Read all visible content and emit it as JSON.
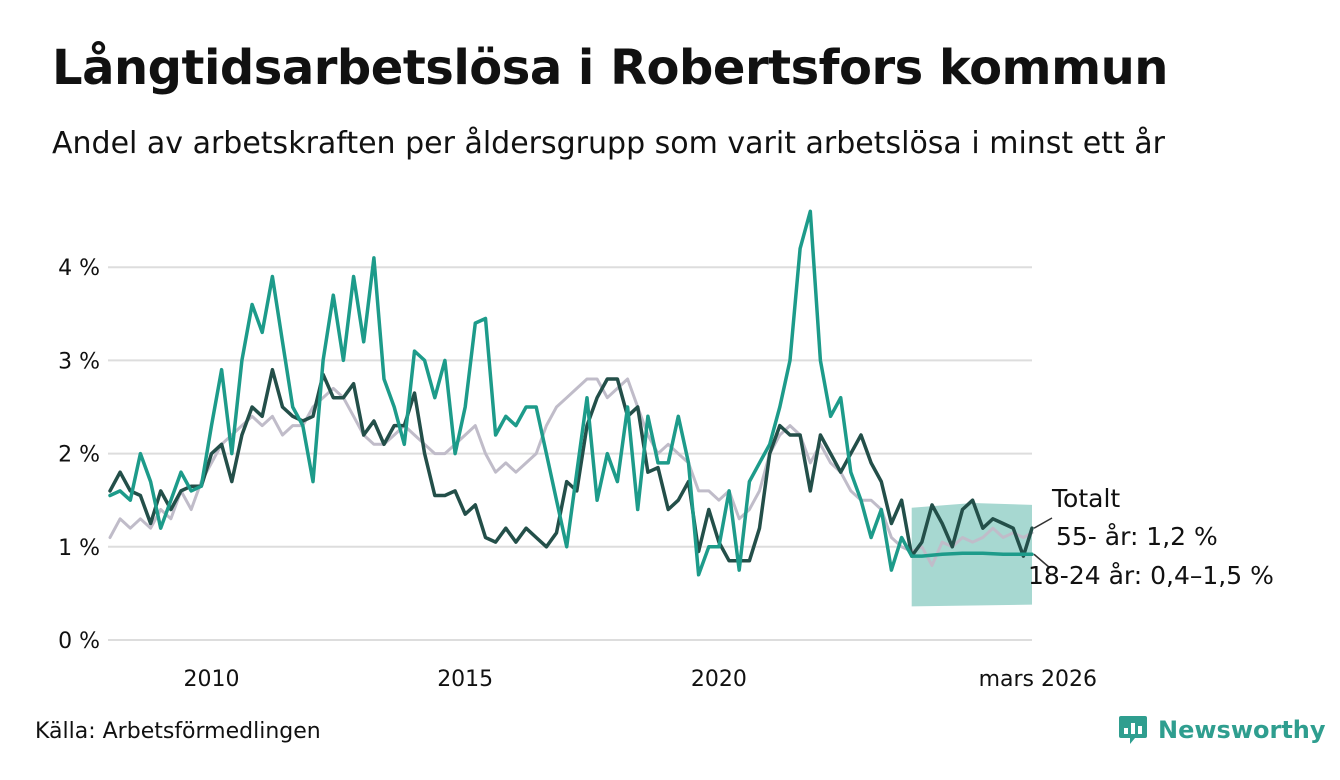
{
  "title": "Långtidsarbetslösa i Robertsfors kommun",
  "subtitle": "Andel av arbetskraften per åldersgrupp som varit arbetslösa i minst ett år",
  "source": "Källa: Arbetsförmedlingen",
  "brand": "Newsworthy",
  "colors": {
    "teal": "#1d9b8a",
    "dark": "#234f49",
    "grey": "#c0bcc9",
    "band": "#a7d8d1",
    "grid": "#dddddd"
  },
  "chart_data": {
    "type": "line",
    "title": "Långtidsarbetslösa i Robertsfors kommun",
    "xlabel": "",
    "ylabel": "",
    "ylim": [
      0,
      4.6
    ],
    "xlim": [
      2008.0,
      2026.17
    ],
    "y_ticks": [
      {
        "value": 0,
        "label": "0 %"
      },
      {
        "value": 1,
        "label": "1 %"
      },
      {
        "value": 2,
        "label": "2 %"
      },
      {
        "value": 3,
        "label": "3 %"
      },
      {
        "value": 4,
        "label": "4 %"
      }
    ],
    "x_ticks": [
      {
        "value": 2010,
        "label": "2010"
      },
      {
        "value": 2015,
        "label": "2015"
      },
      {
        "value": 2020,
        "label": "2020"
      },
      {
        "value": 2026.17,
        "label": "mars 2026"
      }
    ],
    "series": [
      {
        "name": "Totalt",
        "label": "Totalt",
        "color": "#c0bcc9",
        "points": [
          [
            2008.0,
            1.1
          ],
          [
            2008.2,
            1.3
          ],
          [
            2008.4,
            1.2
          ],
          [
            2008.6,
            1.3
          ],
          [
            2008.8,
            1.2
          ],
          [
            2009.0,
            1.4
          ],
          [
            2009.2,
            1.3
          ],
          [
            2009.4,
            1.6
          ],
          [
            2009.6,
            1.4
          ],
          [
            2009.8,
            1.7
          ],
          [
            2010.0,
            1.9
          ],
          [
            2010.2,
            2.1
          ],
          [
            2010.4,
            2.2
          ],
          [
            2010.6,
            2.3
          ],
          [
            2010.8,
            2.4
          ],
          [
            2011.0,
            2.3
          ],
          [
            2011.2,
            2.4
          ],
          [
            2011.4,
            2.2
          ],
          [
            2011.6,
            2.3
          ],
          [
            2011.8,
            2.3
          ],
          [
            2012.0,
            2.5
          ],
          [
            2012.2,
            2.6
          ],
          [
            2012.4,
            2.7
          ],
          [
            2012.6,
            2.6
          ],
          [
            2012.8,
            2.4
          ],
          [
            2013.0,
            2.2
          ],
          [
            2013.2,
            2.1
          ],
          [
            2013.4,
            2.1
          ],
          [
            2013.6,
            2.2
          ],
          [
            2013.8,
            2.3
          ],
          [
            2014.0,
            2.2
          ],
          [
            2014.2,
            2.1
          ],
          [
            2014.4,
            2.0
          ],
          [
            2014.6,
            2.0
          ],
          [
            2014.8,
            2.1
          ],
          [
            2015.0,
            2.2
          ],
          [
            2015.2,
            2.3
          ],
          [
            2015.4,
            2.0
          ],
          [
            2015.6,
            1.8
          ],
          [
            2015.8,
            1.9
          ],
          [
            2016.0,
            1.8
          ],
          [
            2016.2,
            1.9
          ],
          [
            2016.4,
            2.0
          ],
          [
            2016.6,
            2.3
          ],
          [
            2016.8,
            2.5
          ],
          [
            2017.0,
            2.6
          ],
          [
            2017.2,
            2.7
          ],
          [
            2017.4,
            2.8
          ],
          [
            2017.6,
            2.8
          ],
          [
            2017.8,
            2.6
          ],
          [
            2018.0,
            2.7
          ],
          [
            2018.2,
            2.8
          ],
          [
            2018.4,
            2.5
          ],
          [
            2018.6,
            2.2
          ],
          [
            2018.8,
            2.0
          ],
          [
            2019.0,
            2.1
          ],
          [
            2019.2,
            2.0
          ],
          [
            2019.4,
            1.9
          ],
          [
            2019.6,
            1.6
          ],
          [
            2019.8,
            1.6
          ],
          [
            2020.0,
            1.5
          ],
          [
            2020.2,
            1.6
          ],
          [
            2020.4,
            1.3
          ],
          [
            2020.6,
            1.4
          ],
          [
            2020.8,
            1.6
          ],
          [
            2021.0,
            2.0
          ],
          [
            2021.2,
            2.2
          ],
          [
            2021.4,
            2.3
          ],
          [
            2021.6,
            2.2
          ],
          [
            2021.8,
            1.9
          ],
          [
            2022.0,
            2.1
          ],
          [
            2022.2,
            1.9
          ],
          [
            2022.4,
            1.8
          ],
          [
            2022.6,
            1.6
          ],
          [
            2022.8,
            1.5
          ],
          [
            2023.0,
            1.5
          ],
          [
            2023.2,
            1.4
          ],
          [
            2023.4,
            1.1
          ],
          [
            2023.6,
            1.0
          ],
          [
            2023.8,
            0.95
          ],
          [
            2024.0,
            1.0
          ],
          [
            2024.2,
            0.8
          ],
          [
            2024.4,
            1.05
          ],
          [
            2024.6,
            1.0
          ],
          [
            2024.8,
            1.1
          ],
          [
            2025.0,
            1.05
          ],
          [
            2025.2,
            1.1
          ],
          [
            2025.4,
            1.2
          ],
          [
            2025.6,
            1.1
          ],
          [
            2025.8,
            1.15
          ],
          [
            2026.0,
            1.1
          ],
          [
            2026.17,
            1.15
          ]
        ]
      },
      {
        "name": "55- år",
        "label": "55- år: 1,2 %",
        "color": "#234f49",
        "points": [
          [
            2008.0,
            1.6
          ],
          [
            2008.2,
            1.8
          ],
          [
            2008.4,
            1.6
          ],
          [
            2008.6,
            1.55
          ],
          [
            2008.8,
            1.25
          ],
          [
            2009.0,
            1.6
          ],
          [
            2009.2,
            1.4
          ],
          [
            2009.4,
            1.6
          ],
          [
            2009.6,
            1.65
          ],
          [
            2009.8,
            1.65
          ],
          [
            2010.0,
            2.0
          ],
          [
            2010.2,
            2.1
          ],
          [
            2010.4,
            1.7
          ],
          [
            2010.6,
            2.2
          ],
          [
            2010.8,
            2.5
          ],
          [
            2011.0,
            2.4
          ],
          [
            2011.2,
            2.9
          ],
          [
            2011.4,
            2.5
          ],
          [
            2011.6,
            2.4
          ],
          [
            2011.8,
            2.35
          ],
          [
            2012.0,
            2.4
          ],
          [
            2012.2,
            2.85
          ],
          [
            2012.4,
            2.6
          ],
          [
            2012.6,
            2.6
          ],
          [
            2012.8,
            2.75
          ],
          [
            2013.0,
            2.2
          ],
          [
            2013.2,
            2.35
          ],
          [
            2013.4,
            2.1
          ],
          [
            2013.6,
            2.3
          ],
          [
            2013.8,
            2.3
          ],
          [
            2014.0,
            2.65
          ],
          [
            2014.2,
            2.0
          ],
          [
            2014.4,
            1.55
          ],
          [
            2014.6,
            1.55
          ],
          [
            2014.8,
            1.6
          ],
          [
            2015.0,
            1.35
          ],
          [
            2015.2,
            1.45
          ],
          [
            2015.4,
            1.1
          ],
          [
            2015.6,
            1.05
          ],
          [
            2015.8,
            1.2
          ],
          [
            2016.0,
            1.05
          ],
          [
            2016.2,
            1.2
          ],
          [
            2016.4,
            1.1
          ],
          [
            2016.6,
            1.0
          ],
          [
            2016.8,
            1.15
          ],
          [
            2017.0,
            1.7
          ],
          [
            2017.2,
            1.6
          ],
          [
            2017.4,
            2.3
          ],
          [
            2017.6,
            2.6
          ],
          [
            2017.8,
            2.8
          ],
          [
            2018.0,
            2.8
          ],
          [
            2018.2,
            2.4
          ],
          [
            2018.4,
            2.5
          ],
          [
            2018.6,
            1.8
          ],
          [
            2018.8,
            1.85
          ],
          [
            2019.0,
            1.4
          ],
          [
            2019.2,
            1.5
          ],
          [
            2019.4,
            1.7
          ],
          [
            2019.6,
            0.95
          ],
          [
            2019.8,
            1.4
          ],
          [
            2020.0,
            1.05
          ],
          [
            2020.2,
            0.85
          ],
          [
            2020.4,
            0.85
          ],
          [
            2020.6,
            0.85
          ],
          [
            2020.8,
            1.2
          ],
          [
            2021.0,
            2.0
          ],
          [
            2021.2,
            2.3
          ],
          [
            2021.4,
            2.2
          ],
          [
            2021.6,
            2.2
          ],
          [
            2021.8,
            1.6
          ],
          [
            2022.0,
            2.2
          ],
          [
            2022.2,
            2.0
          ],
          [
            2022.4,
            1.8
          ],
          [
            2022.6,
            2.0
          ],
          [
            2022.8,
            2.2
          ],
          [
            2023.0,
            1.9
          ],
          [
            2023.2,
            1.7
          ],
          [
            2023.4,
            1.25
          ],
          [
            2023.6,
            1.5
          ],
          [
            2023.8,
            0.9
          ],
          [
            2024.0,
            1.05
          ],
          [
            2024.2,
            1.45
          ],
          [
            2024.4,
            1.25
          ],
          [
            2024.6,
            1.0
          ],
          [
            2024.8,
            1.4
          ],
          [
            2025.0,
            1.5
          ],
          [
            2025.2,
            1.2
          ],
          [
            2025.4,
            1.3
          ],
          [
            2025.6,
            1.25
          ],
          [
            2025.8,
            1.2
          ],
          [
            2026.0,
            0.9
          ],
          [
            2026.17,
            1.2
          ]
        ]
      },
      {
        "name": "18-24 år",
        "label": "18-24 år: 0,4–1,5 %",
        "color": "#1d9b8a",
        "points": [
          [
            2008.0,
            1.55
          ],
          [
            2008.2,
            1.6
          ],
          [
            2008.4,
            1.5
          ],
          [
            2008.6,
            2.0
          ],
          [
            2008.8,
            1.7
          ],
          [
            2009.0,
            1.2
          ],
          [
            2009.2,
            1.5
          ],
          [
            2009.4,
            1.8
          ],
          [
            2009.6,
            1.6
          ],
          [
            2009.8,
            1.65
          ],
          [
            2010.0,
            2.3
          ],
          [
            2010.2,
            2.9
          ],
          [
            2010.4,
            2.0
          ],
          [
            2010.6,
            3.0
          ],
          [
            2010.8,
            3.6
          ],
          [
            2011.0,
            3.3
          ],
          [
            2011.2,
            3.9
          ],
          [
            2011.4,
            3.2
          ],
          [
            2011.6,
            2.5
          ],
          [
            2011.8,
            2.3
          ],
          [
            2012.0,
            1.7
          ],
          [
            2012.2,
            3.0
          ],
          [
            2012.4,
            3.7
          ],
          [
            2012.6,
            3.0
          ],
          [
            2012.8,
            3.9
          ],
          [
            2013.0,
            3.2
          ],
          [
            2013.2,
            4.1
          ],
          [
            2013.4,
            2.8
          ],
          [
            2013.6,
            2.5
          ],
          [
            2013.8,
            2.1
          ],
          [
            2014.0,
            3.1
          ],
          [
            2014.2,
            3.0
          ],
          [
            2014.4,
            2.6
          ],
          [
            2014.6,
            3.0
          ],
          [
            2014.8,
            2.0
          ],
          [
            2015.0,
            2.5
          ],
          [
            2015.2,
            3.4
          ],
          [
            2015.4,
            3.45
          ],
          [
            2015.6,
            2.2
          ],
          [
            2015.8,
            2.4
          ],
          [
            2016.0,
            2.3
          ],
          [
            2016.2,
            2.5
          ],
          [
            2016.4,
            2.5
          ],
          [
            2016.6,
            2.0
          ],
          [
            2016.8,
            1.5
          ],
          [
            2017.0,
            1.0
          ],
          [
            2017.2,
            1.8
          ],
          [
            2017.4,
            2.6
          ],
          [
            2017.6,
            1.5
          ],
          [
            2017.8,
            2.0
          ],
          [
            2018.0,
            1.7
          ],
          [
            2018.2,
            2.5
          ],
          [
            2018.4,
            1.4
          ],
          [
            2018.6,
            2.4
          ],
          [
            2018.8,
            1.9
          ],
          [
            2019.0,
            1.9
          ],
          [
            2019.2,
            2.4
          ],
          [
            2019.4,
            1.9
          ],
          [
            2019.6,
            0.7
          ],
          [
            2019.8,
            1.0
          ],
          [
            2020.0,
            1.0
          ],
          [
            2020.2,
            1.6
          ],
          [
            2020.4,
            0.75
          ],
          [
            2020.6,
            1.7
          ],
          [
            2020.8,
            1.9
          ],
          [
            2021.0,
            2.1
          ],
          [
            2021.2,
            2.5
          ],
          [
            2021.4,
            3.0
          ],
          [
            2021.6,
            4.2
          ],
          [
            2021.8,
            4.6
          ],
          [
            2022.0,
            3.0
          ],
          [
            2022.2,
            2.4
          ],
          [
            2022.4,
            2.6
          ],
          [
            2022.6,
            1.8
          ],
          [
            2022.8,
            1.5
          ],
          [
            2023.0,
            1.1
          ],
          [
            2023.2,
            1.4
          ],
          [
            2023.4,
            0.75
          ],
          [
            2023.6,
            1.1
          ],
          [
            2023.8,
            0.9
          ],
          [
            2024.0,
            0.9
          ],
          [
            2024.4,
            0.92
          ],
          [
            2024.8,
            0.93
          ],
          [
            2025.2,
            0.93
          ],
          [
            2025.6,
            0.92
          ],
          [
            2026.0,
            0.92
          ],
          [
            2026.17,
            0.92
          ]
        ]
      }
    ],
    "range_band": {
      "series": "18-24 år",
      "low": [
        [
          2023.8,
          0.36
        ],
        [
          2026.17,
          0.38
        ]
      ],
      "high": [
        [
          2023.8,
          1.42
        ],
        [
          2025.0,
          1.47
        ],
        [
          2026.17,
          1.45
        ]
      ]
    }
  }
}
